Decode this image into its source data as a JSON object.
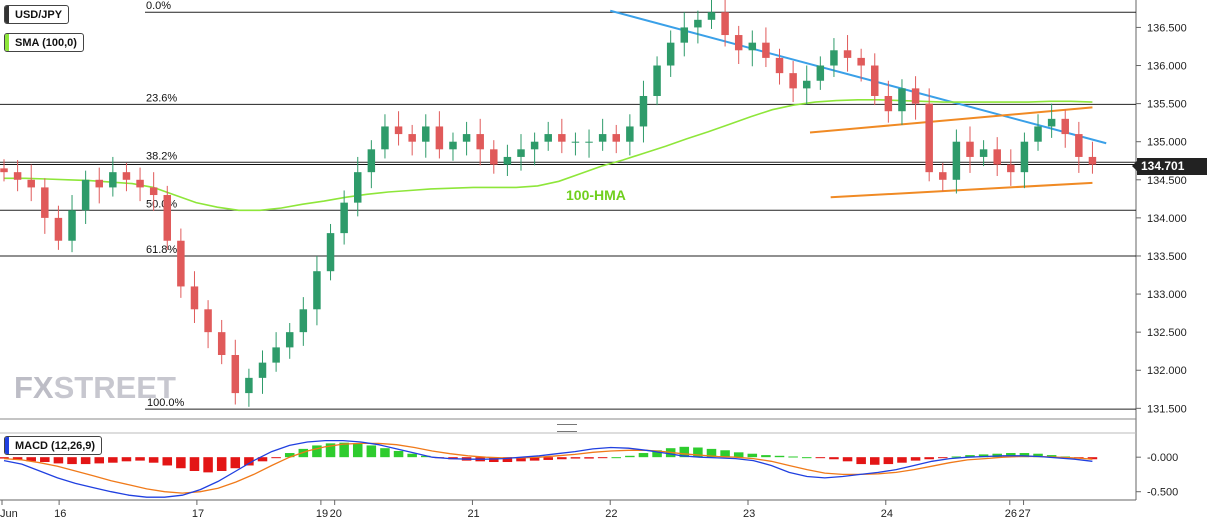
{
  "chart_data": {
    "type": "candlestick",
    "symbol": "USD/JPY",
    "indicator_label": "SMA (100,0)",
    "ma_label": "100-HMA",
    "ma_color": "#8ee63a",
    "macd_label": "MACD (12,26,9)",
    "last_price": "134.701",
    "y_ticks": [
      "136.500",
      "136.000",
      "135.500",
      "135.000",
      "134.500",
      "134.000",
      "133.500",
      "133.000",
      "132.500",
      "132.000",
      "131.500"
    ],
    "y_tick_values": [
      136.5,
      136.0,
      135.5,
      135.0,
      134.5,
      134.0,
      133.5,
      133.0,
      132.5,
      132.0,
      131.5
    ],
    "ylim": [
      131.36,
      136.86
    ],
    "macd_ticks": [
      "-0.000",
      "-0.500"
    ],
    "macd_tick_values": [
      0,
      -0.5
    ],
    "macd_ylim": [
      -0.62,
      0.35
    ],
    "x_ticks": [
      "Jun",
      "16",
      "17",
      "19",
      "20",
      "21",
      "22",
      "23",
      "24",
      "26",
      "27"
    ],
    "x_tick_values": [
      0,
      4,
      14,
      23,
      24,
      34,
      44,
      54,
      64,
      73,
      74
    ],
    "xlim": [
      0,
      81
    ],
    "fib_levels": [
      {
        "label": "0.0%",
        "price": 136.7
      },
      {
        "label": "23.6%",
        "price": 135.49
      },
      {
        "label": "38.2%",
        "price": 134.73
      },
      {
        "label": "50.0%",
        "price": 134.1
      },
      {
        "label": "61.8%",
        "price": 133.5
      },
      {
        "label": "100.0%",
        "price": 131.49
      }
    ],
    "closes": [
      134.6,
      134.5,
      134.4,
      134.0,
      133.7,
      134.1,
      134.5,
      134.4,
      134.6,
      134.5,
      134.4,
      134.3,
      133.7,
      133.1,
      132.8,
      132.5,
      132.2,
      131.7,
      131.9,
      132.1,
      132.3,
      132.5,
      132.8,
      133.3,
      133.8,
      134.2,
      134.6,
      134.9,
      135.2,
      135.1,
      135.0,
      135.2,
      134.9,
      135.0,
      135.1,
      134.9,
      134.7,
      134.8,
      134.9,
      135.0,
      135.1,
      135.0,
      135.0,
      135.0,
      135.1,
      135.0,
      135.2,
      135.6,
      136.0,
      136.3,
      136.5,
      136.6,
      136.7,
      136.4,
      136.2,
      136.3,
      136.1,
      135.9,
      135.7,
      135.8,
      136.0,
      136.2,
      136.1,
      136.0,
      135.6,
      135.4,
      135.7,
      135.5,
      134.6,
      134.5,
      135.0,
      134.8,
      134.9,
      134.7,
      134.6,
      135.0,
      135.2,
      135.3,
      135.1,
      134.8,
      134.7
    ],
    "hma_100": [
      134.52,
      134.52,
      134.51,
      134.5,
      134.49,
      134.47,
      134.45,
      134.4,
      134.3,
      134.2,
      134.14,
      134.1,
      134.1,
      134.13,
      134.18,
      134.22,
      134.27,
      134.31,
      134.34,
      134.36,
      134.38,
      134.39,
      134.4,
      134.4,
      134.4,
      134.42,
      134.48,
      134.58,
      134.68,
      134.76,
      134.85,
      134.94,
      135.04,
      135.13,
      135.23,
      135.33,
      135.42,
      135.48,
      135.52,
      135.54,
      135.55,
      135.55,
      135.54,
      135.53,
      135.52,
      135.52,
      135.52,
      135.52,
      135.52,
      135.53,
      135.53,
      135.52
    ],
    "trendlines": [
      {
        "name": "resistance",
        "color": "#3aa0e8",
        "x": [
          44,
          80
        ],
        "y": [
          136.72,
          134.98
        ]
      },
      {
        "name": "channel-top",
        "color": "#f08a24",
        "x": [
          58.5,
          79
        ],
        "y": [
          135.12,
          135.45
        ]
      },
      {
        "name": "channel-bottom",
        "color": "#f08a24",
        "x": [
          60,
          79
        ],
        "y": [
          134.27,
          134.46
        ]
      }
    ],
    "macd_hist": [
      -0.02,
      -0.04,
      -0.06,
      -0.07,
      -0.09,
      -0.1,
      -0.1,
      -0.09,
      -0.08,
      -0.06,
      -0.05,
      -0.08,
      -0.12,
      -0.16,
      -0.2,
      -0.22,
      -0.2,
      -0.16,
      -0.12,
      -0.06,
      -0.01,
      0.06,
      0.12,
      0.17,
      0.2,
      0.21,
      0.2,
      0.17,
      0.13,
      0.09,
      0.05,
      0.02,
      -0.01,
      -0.03,
      -0.05,
      -0.06,
      -0.07,
      -0.07,
      -0.06,
      -0.05,
      -0.04,
      -0.03,
      -0.02,
      -0.02,
      -0.01,
      0.0,
      0.02,
      0.06,
      0.1,
      0.13,
      0.15,
      0.14,
      0.12,
      0.1,
      0.07,
      0.05,
      0.03,
      0.02,
      0.01,
      0.0,
      -0.01,
      -0.03,
      -0.06,
      -0.1,
      -0.11,
      -0.1,
      -0.08,
      -0.05,
      -0.03,
      -0.01,
      0.01,
      0.03,
      0.04,
      0.05,
      0.06,
      0.06,
      0.05,
      0.03,
      0.01,
      -0.02,
      -0.03
    ],
    "macd_line": [
      -0.05,
      -0.1,
      -0.2,
      -0.3,
      -0.38,
      -0.44,
      -0.5,
      -0.55,
      -0.58,
      -0.58,
      -0.55,
      -0.47,
      -0.35,
      -0.2,
      -0.05,
      0.08,
      0.17,
      0.22,
      0.24,
      0.24,
      0.22,
      0.18,
      0.12,
      0.06,
      0.0,
      -0.02,
      -0.03,
      -0.03,
      -0.02,
      0.0,
      0.02,
      0.05,
      0.08,
      0.12,
      0.14,
      0.13,
      0.1,
      0.06,
      0.02,
      0.0,
      -0.01,
      -0.02,
      -0.05,
      -0.12,
      -0.22,
      -0.28,
      -0.3,
      -0.28,
      -0.25,
      -0.22,
      -0.18,
      -0.12,
      -0.06,
      -0.02,
      0.0,
      0.01,
      0.02,
      0.02,
      0.01,
      -0.01,
      -0.03,
      -0.06
    ],
    "signal_line": [
      -0.02,
      -0.04,
      -0.08,
      -0.13,
      -0.2,
      -0.27,
      -0.34,
      -0.4,
      -0.46,
      -0.5,
      -0.52,
      -0.5,
      -0.45,
      -0.36,
      -0.25,
      -0.12,
      0.0,
      0.09,
      0.15,
      0.19,
      0.2,
      0.2,
      0.18,
      0.14,
      0.09,
      0.05,
      0.02,
      0.0,
      -0.01,
      -0.01,
      0.0,
      0.02,
      0.04,
      0.07,
      0.09,
      0.1,
      0.1,
      0.08,
      0.05,
      0.03,
      0.01,
      0.0,
      -0.02,
      -0.06,
      -0.12,
      -0.18,
      -0.23,
      -0.25,
      -0.25,
      -0.24,
      -0.22,
      -0.18,
      -0.13,
      -0.08,
      -0.04,
      -0.02,
      0.0,
      0.01,
      0.01,
      0.0,
      -0.01,
      -0.03
    ],
    "up_color": "#2e9b6a",
    "down_color": "#e05a5a",
    "hist_pos_color": "#2ecc2e",
    "hist_neg_color": "#e31515",
    "macd_color": "#2040e0",
    "signal_color": "#f07a1a"
  },
  "logo_text": {
    "a": "FX",
    "b": "STREET"
  }
}
